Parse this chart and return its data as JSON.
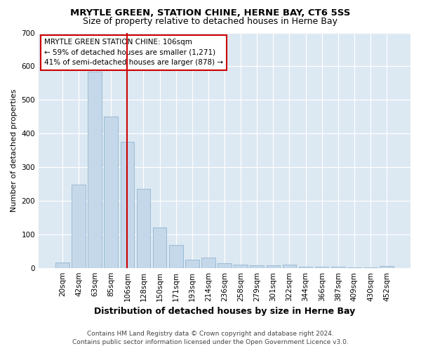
{
  "title": "MRYTLE GREEN, STATION CHINE, HERNE BAY, CT6 5SS",
  "subtitle": "Size of property relative to detached houses in Herne Bay",
  "xlabel": "Distribution of detached houses by size in Herne Bay",
  "ylabel": "Number of detached properties",
  "footer_line1": "Contains HM Land Registry data © Crown copyright and database right 2024.",
  "footer_line2": "Contains public sector information licensed under the Open Government Licence v3.0.",
  "annotation_line1": "MRYTLE GREEN STATION CHINE: 106sqm",
  "annotation_line2": "← 59% of detached houses are smaller (1,271)",
  "annotation_line3": "41% of semi-detached houses are larger (878) →",
  "marker_color": "#cc0000",
  "bar_color": "#c5d8ea",
  "bar_edge_color": "#9abbd4",
  "background_color": "#dce8f2",
  "grid_color": "#ffffff",
  "fig_bg_color": "#ffffff",
  "categories": [
    "20sqm",
    "42sqm",
    "63sqm",
    "85sqm",
    "106sqm",
    "128sqm",
    "150sqm",
    "171sqm",
    "193sqm",
    "214sqm",
    "236sqm",
    "258sqm",
    "279sqm",
    "301sqm",
    "322sqm",
    "344sqm",
    "366sqm",
    "387sqm",
    "409sqm",
    "430sqm",
    "452sqm"
  ],
  "values": [
    15,
    247,
    585,
    450,
    375,
    235,
    120,
    68,
    24,
    30,
    13,
    10,
    7,
    7,
    10,
    4,
    4,
    4,
    1,
    1,
    5
  ],
  "ylim": [
    0,
    700
  ],
  "yticks": [
    0,
    100,
    200,
    300,
    400,
    500,
    600,
    700
  ],
  "title_fontsize": 9.5,
  "subtitle_fontsize": 9,
  "ylabel_fontsize": 8,
  "xlabel_fontsize": 9,
  "tick_fontsize": 7.5,
  "footer_fontsize": 6.5,
  "annot_fontsize": 7.5
}
